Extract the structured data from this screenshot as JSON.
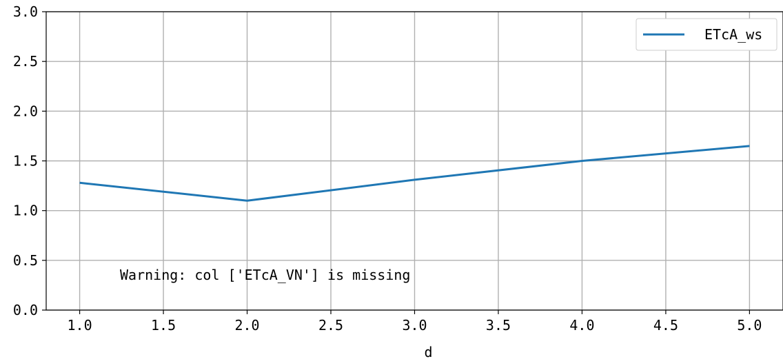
{
  "chart_data": {
    "type": "line",
    "x": [
      1.0,
      2.0,
      3.0,
      4.0,
      5.0
    ],
    "series": [
      {
        "name": "ETcA_ws",
        "values": [
          1.28,
          1.1,
          1.31,
          1.5,
          1.65
        ],
        "color": "#1f77b4"
      }
    ],
    "xlabel": "d",
    "ylabel": "",
    "xlim": [
      0.8,
      5.2
    ],
    "ylim": [
      0.0,
      3.0
    ],
    "xticks": [
      "1.0",
      "1.5",
      "2.0",
      "2.5",
      "3.0",
      "3.5",
      "4.0",
      "4.5",
      "5.0"
    ],
    "yticks": [
      "0.0",
      "0.5",
      "1.0",
      "1.5",
      "2.0",
      "2.5",
      "3.0"
    ],
    "grid": true,
    "legend_position": "top-right",
    "annotation": "Warning: col ['ETcA_VN'] is missing"
  }
}
